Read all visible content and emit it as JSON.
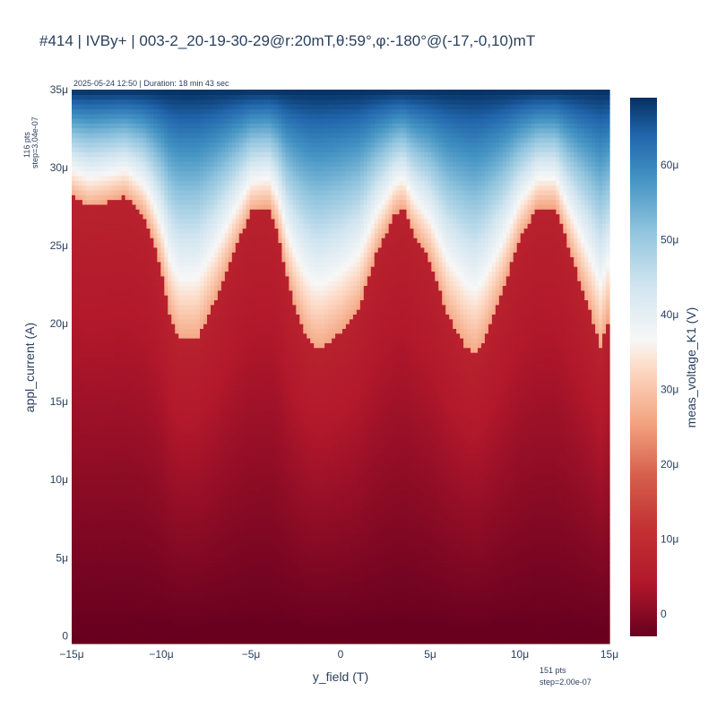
{
  "title": "#414 | IVBy+ | 003-2_20-19-30-29@r:20mT,θ:59°,φ:-180°@(-17,-0,10)mT",
  "top_note": "2025-05-24 12:50 | Duration: 18 min 43 sec",
  "y_points_note": {
    "line1": "116 pts",
    "line2": "step=3.04e-07"
  },
  "x_points_note": {
    "line1": "151 pts",
    "line2": "step=2.00e-07"
  },
  "chart_data": {
    "type": "heatmap",
    "xlabel": "y_field (T)",
    "ylabel": "appl_current (A)",
    "colorbar_label": "meas_voltage_K1 (V)",
    "colorscale": "RdBu",
    "x_range": [
      -1.5e-05,
      1.5e-05
    ],
    "y_range": [
      -5e-07,
      3.5e-05
    ],
    "z_range": [
      -3e-06,
      6.9e-05
    ],
    "x_points": 151,
    "y_points": 116,
    "x_ticks": [
      {
        "value": -1.5e-05,
        "label": "−15μ"
      },
      {
        "value": -1e-05,
        "label": "−10μ"
      },
      {
        "value": -5e-06,
        "label": "−5μ"
      },
      {
        "value": 0,
        "label": "0"
      },
      {
        "value": 5e-06,
        "label": "5μ"
      },
      {
        "value": 1e-05,
        "label": "10μ"
      },
      {
        "value": 1.5e-05,
        "label": "15μ"
      }
    ],
    "y_ticks": [
      {
        "value": 0,
        "label": "0"
      },
      {
        "value": 5e-06,
        "label": "5μ"
      },
      {
        "value": 1e-05,
        "label": "10μ"
      },
      {
        "value": 1.5e-05,
        "label": "15μ"
      },
      {
        "value": 2e-05,
        "label": "20μ"
      },
      {
        "value": 2.5e-05,
        "label": "25μ"
      },
      {
        "value": 3e-05,
        "label": "30μ"
      },
      {
        "value": 3.5e-05,
        "label": "35μ"
      }
    ],
    "colorbar_ticks": [
      {
        "value": 0,
        "label": "0"
      },
      {
        "value": 1e-05,
        "label": "10μ"
      },
      {
        "value": 2e-05,
        "label": "20μ"
      },
      {
        "value": 3e-05,
        "label": "30μ"
      },
      {
        "value": 4e-05,
        "label": "40μ"
      },
      {
        "value": 5e-05,
        "label": "50μ"
      },
      {
        "value": 6e-05,
        "label": "60μ"
      }
    ],
    "switching_current": {
      "description": "Approximate current (A) at which voltage jumps from superconducting to resistive state, sampled along y_field",
      "x": [
        -1.5e-05,
        -1.4e-05,
        -1.3e-05,
        -1.2e-05,
        -1.1e-05,
        -1.05e-05,
        -1e-05,
        -9.5e-06,
        -9e-06,
        -8e-06,
        -7e-06,
        -6e-06,
        -5e-06,
        -4e-06,
        -3.5e-06,
        -3e-06,
        -2.5e-06,
        -2e-06,
        -1.5e-06,
        -1e-06,
        -5e-07,
        0,
        1e-06,
        2e-06,
        3e-06,
        3.5e-06,
        4e-06,
        5e-06,
        6e-06,
        7e-06,
        7.5e-06,
        8e-06,
        9e-06,
        1e-05,
        1.1e-05,
        1.2e-05,
        1.3e-05,
        1.4e-05,
        1.45e-05,
        1.5e-05
      ],
      "y": [
        2.82e-05,
        2.75e-05,
        2.78e-05,
        2.82e-05,
        2.7e-05,
        2.55e-05,
        2.35e-05,
        2.05e-05,
        1.9e-05,
        1.9e-05,
        2.15e-05,
        2.45e-05,
        2.72e-05,
        2.75e-05,
        2.6e-05,
        2.3e-05,
        2.1e-05,
        1.95e-05,
        1.85e-05,
        1.85e-05,
        1.9e-05,
        1.95e-05,
        2.1e-05,
        2.45e-05,
        2.7e-05,
        2.75e-05,
        2.6e-05,
        2.4e-05,
        2.05e-05,
        1.85e-05,
        1.8e-05,
        1.9e-05,
        2.2e-05,
        2.55e-05,
        2.75e-05,
        2.75e-05,
        2.4e-05,
        2.05e-05,
        1.85e-05,
        2.05e-05
      ]
    }
  }
}
